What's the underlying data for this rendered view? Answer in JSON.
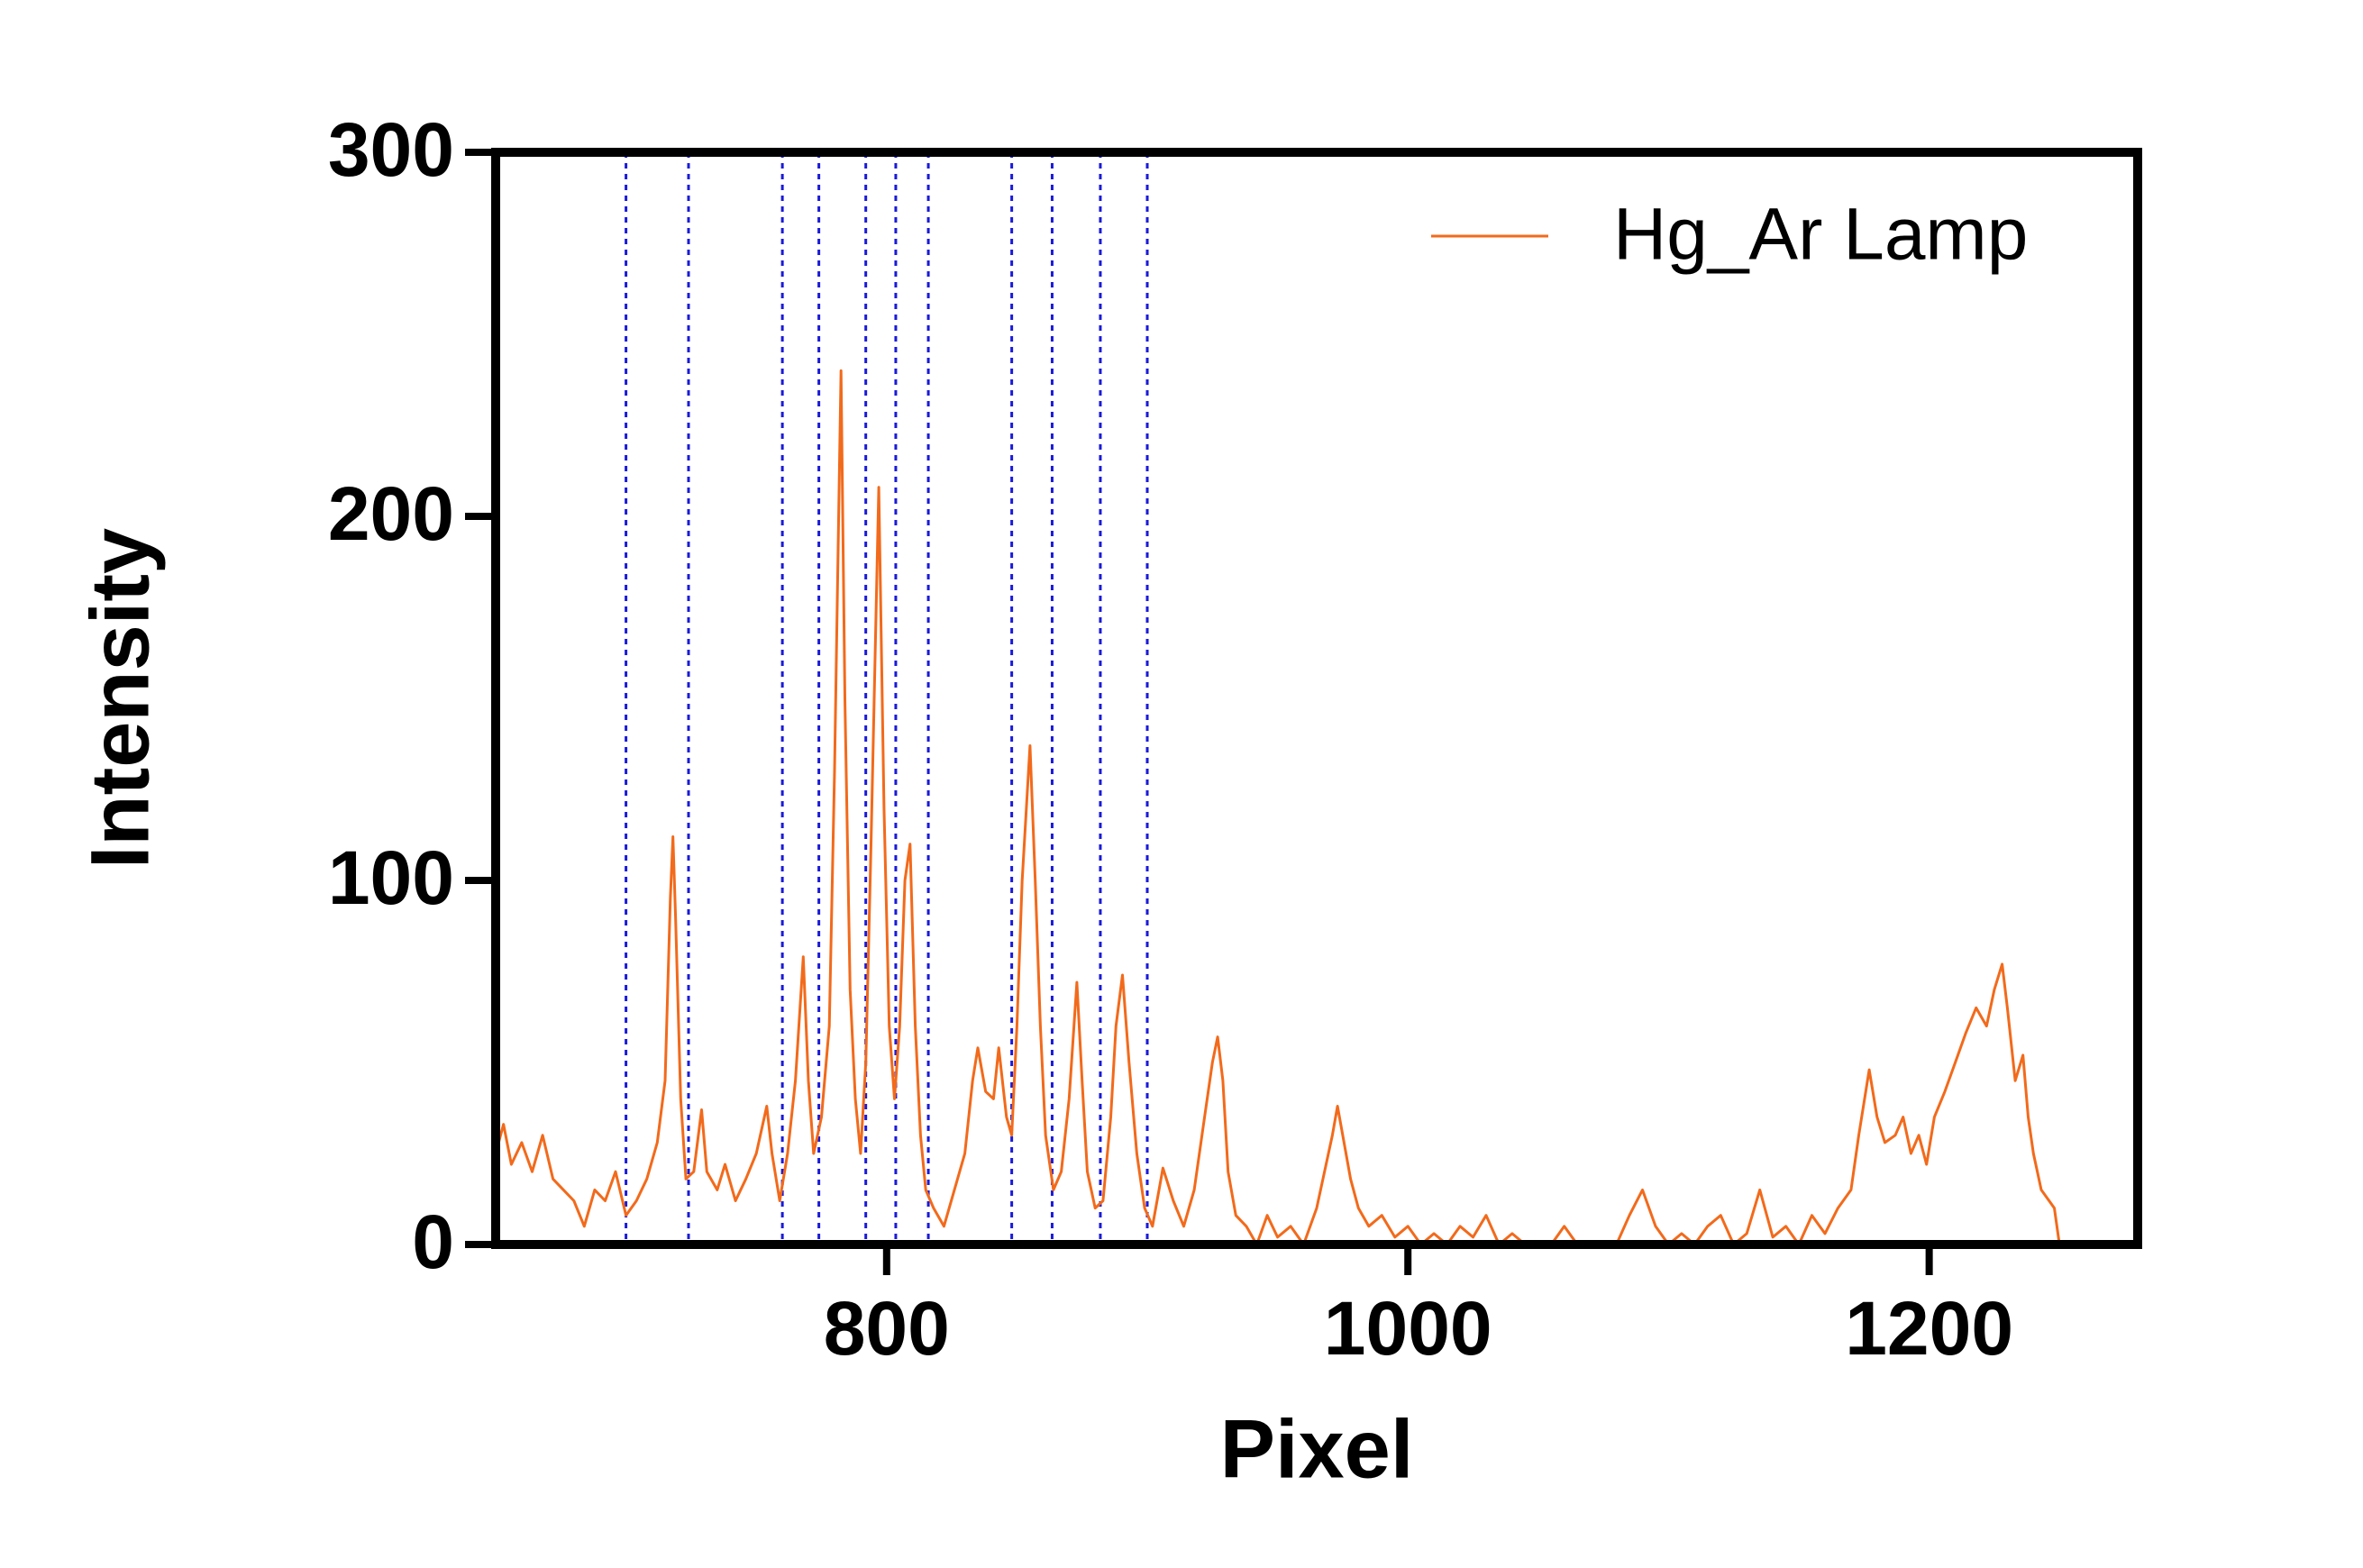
{
  "chart_data": {
    "type": "line",
    "x_label": "Pixel",
    "y_label": "Intensity",
    "xlim": [
      650,
      1280
    ],
    "ylim": [
      0,
      300
    ],
    "xticks": [
      800,
      1000,
      1200
    ],
    "yticks": [
      0,
      100,
      200,
      300
    ],
    "legend": "upper right",
    "reference_lines": {
      "color": "#1a1adb",
      "x": [
        700,
        724,
        760,
        774,
        792,
        803.5,
        816,
        848,
        863.5,
        882,
        900
      ]
    },
    "series": [
      {
        "name": "Hg_Ar Lamp",
        "color": "#f26a1b",
        "x": [
          650,
          653,
          656,
          660,
          664,
          668,
          672,
          676,
          680,
          684,
          688,
          692,
          696,
          700,
          704,
          708,
          712,
          715,
          717,
          718,
          719,
          721,
          723,
          726,
          729,
          731,
          735,
          738,
          742,
          746,
          750,
          754,
          756,
          759,
          762,
          765,
          768,
          770,
          772,
          775,
          778,
          780,
          782.5,
          784,
          786,
          788,
          790,
          792,
          794,
          797,
          799,
          801,
          803,
          805,
          807,
          809,
          811,
          813,
          815,
          818,
          822,
          826,
          830,
          833,
          835,
          838,
          841,
          843,
          846,
          848,
          850,
          852,
          855,
          857,
          859,
          861,
          864,
          867,
          870,
          873,
          875,
          877,
          880,
          883,
          886,
          888,
          890.5,
          893,
          896,
          899,
          902,
          906,
          910,
          914,
          918,
          922,
          925,
          927,
          929,
          931,
          934,
          938,
          942,
          946,
          950,
          955,
          960,
          965,
          968,
          971,
          973,
          975,
          978,
          981,
          985,
          990,
          995,
          1000,
          1005,
          1010,
          1015,
          1020,
          1025,
          1030,
          1035,
          1040,
          1045,
          1050,
          1055,
          1060,
          1065,
          1070,
          1075,
          1080,
          1085,
          1090,
          1095,
          1100,
          1105,
          1110,
          1115,
          1120,
          1125,
          1130,
          1135,
          1140,
          1145,
          1150,
          1155,
          1160,
          1165,
          1170,
          1173,
          1177,
          1180,
          1183,
          1187,
          1190,
          1193,
          1196,
          1199,
          1202,
          1206,
          1210,
          1214,
          1218,
          1222,
          1225,
          1228,
          1230,
          1233,
          1236,
          1238,
          1240,
          1243,
          1246,
          1248,
          1250
        ],
        "values": [
          25,
          33,
          22,
          28,
          20,
          30,
          18,
          15,
          12,
          5,
          15,
          12,
          20,
          8,
          12,
          18,
          28,
          45,
          95,
          112,
          90,
          40,
          18,
          20,
          37,
          20,
          15,
          22,
          12,
          18,
          25,
          38,
          25,
          12,
          25,
          45,
          79,
          45,
          25,
          35,
          60,
          130,
          240,
          150,
          70,
          40,
          25,
          50,
          110,
          208,
          120,
          60,
          40,
          60,
          100,
          110,
          60,
          30,
          15,
          10,
          5,
          15,
          25,
          45,
          54,
          42,
          40,
          54,
          35,
          30,
          60,
          100,
          137,
          100,
          60,
          30,
          15,
          20,
          40,
          72,
          45,
          20,
          10,
          12,
          35,
          60,
          74,
          50,
          25,
          10,
          5,
          21,
          12,
          5,
          15,
          35,
          50,
          57,
          45,
          20,
          8,
          5,
          0,
          8,
          2,
          5,
          0,
          10,
          20,
          30,
          38,
          30,
          18,
          10,
          5,
          8,
          2,
          5,
          0,
          3,
          0,
          5,
          2,
          8,
          0,
          3,
          0,
          0,
          0,
          5,
          0,
          0,
          0,
          0,
          8,
          15,
          5,
          0,
          3,
          0,
          5,
          8,
          0,
          3,
          15,
          2,
          5,
          0,
          8,
          3,
          10,
          15,
          30,
          48,
          35,
          28,
          30,
          35,
          25,
          30,
          22,
          35,
          42,
          50,
          58,
          65,
          60,
          70,
          77,
          65,
          45,
          52,
          35,
          25,
          15,
          12,
          10,
          0
        ]
      }
    ]
  }
}
